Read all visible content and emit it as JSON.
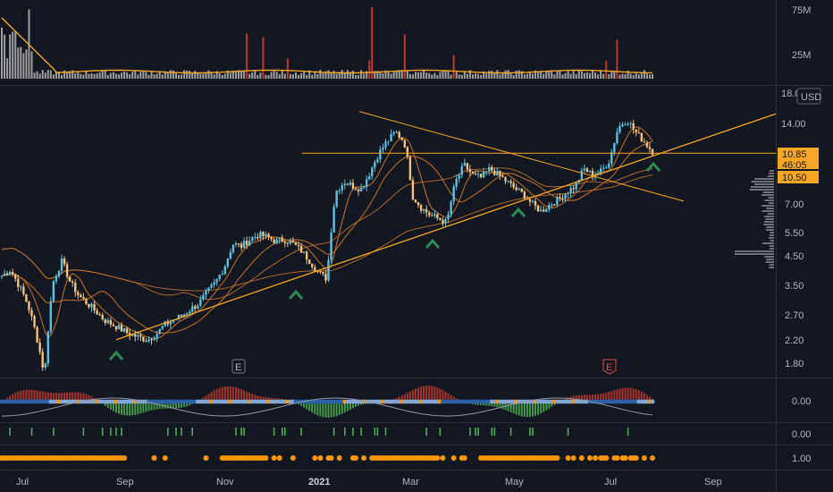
{
  "chart_data": {
    "type": "candlestick",
    "symbol_currency": "USD",
    "price_axis": {
      "scale": "log",
      "ticks": [
        "14.00",
        "7.00",
        "5.50",
        "4.50",
        "3.50",
        "2.70",
        "2.20",
        "1.80"
      ],
      "top_partial_label": "18.00"
    },
    "volume_axis": {
      "ticks": [
        "75M",
        "25M"
      ]
    },
    "osc1_axis": {
      "ticks": [
        "0.00"
      ]
    },
    "osc2_axis": {
      "ticks": [
        "0.00"
      ]
    },
    "osc3_axis": {
      "ticks": [
        "1.00"
      ]
    },
    "x_axis": {
      "labels": [
        {
          "text": "Jul",
          "year": false
        },
        {
          "text": "Sep",
          "year": false
        },
        {
          "text": "Nov",
          "year": false
        },
        {
          "text": "2021",
          "year": true
        },
        {
          "text": "Mar",
          "year": false
        },
        {
          "text": "May",
          "year": false
        },
        {
          "text": "Jul",
          "year": false
        },
        {
          "text": "Sep",
          "year": false
        }
      ]
    },
    "price_tags": [
      {
        "value": "10.85",
        "sub": "46:05",
        "color": "#f5a623",
        "text_color": "#131722"
      },
      {
        "value": "10.50",
        "sub": "",
        "color": "#f5a623",
        "text_color": "#131722"
      }
    ],
    "horizontal_level": 10.85,
    "earnings_markers": [
      {
        "label": "E",
        "style": "past"
      },
      {
        "label": "E",
        "style": "upcoming"
      }
    ],
    "pivot_markers_count": 6,
    "colors": {
      "up": "#5bc0de",
      "down": "#f5c07a",
      "trend": "#f5a623",
      "ma": "#c8742a",
      "vol": "#9e9e9e",
      "vol_hi": "#c0392b",
      "pivot": "#2e8b57",
      "osc_pos": "#c0392b",
      "osc_neg": "#4caf50",
      "osc_dot_blue": "#2962a8",
      "osc_dot_lt": "#7fa8d8",
      "dot_orange": "#ff9800",
      "grid": "#2a2e39",
      "bg": "#131722"
    },
    "series": [
      {
        "name": "price_close_approx",
        "values": [
          3.8,
          4.0,
          3.5,
          3.0,
          2.3,
          1.6,
          3.6,
          4.3,
          3.6,
          3.2,
          3.0,
          2.8,
          2.6,
          2.5,
          2.4,
          2.3,
          2.25,
          2.2,
          2.3,
          2.5,
          2.6,
          2.7,
          2.85,
          3.0,
          3.3,
          3.6,
          4.1,
          5.0,
          4.9,
          5.2,
          5.4,
          5.3,
          5.1,
          5.2,
          5.0,
          4.7,
          4.3,
          3.9,
          3.7,
          7.8,
          8.5,
          8.2,
          8.0,
          9.2,
          10.8,
          12.0,
          13.0,
          12.0,
          7.5,
          6.8,
          6.4,
          6.2,
          6.0,
          8.5,
          9.8,
          9.0,
          8.8,
          9.5,
          9.0,
          8.5,
          8.0,
          7.6,
          7.0,
          6.6,
          7.0,
          7.3,
          7.8,
          8.2,
          9.5,
          9.0,
          9.3,
          10.2,
          13.5,
          14.5,
          13.0,
          12.0,
          11.0
        ]
      }
    ]
  }
}
